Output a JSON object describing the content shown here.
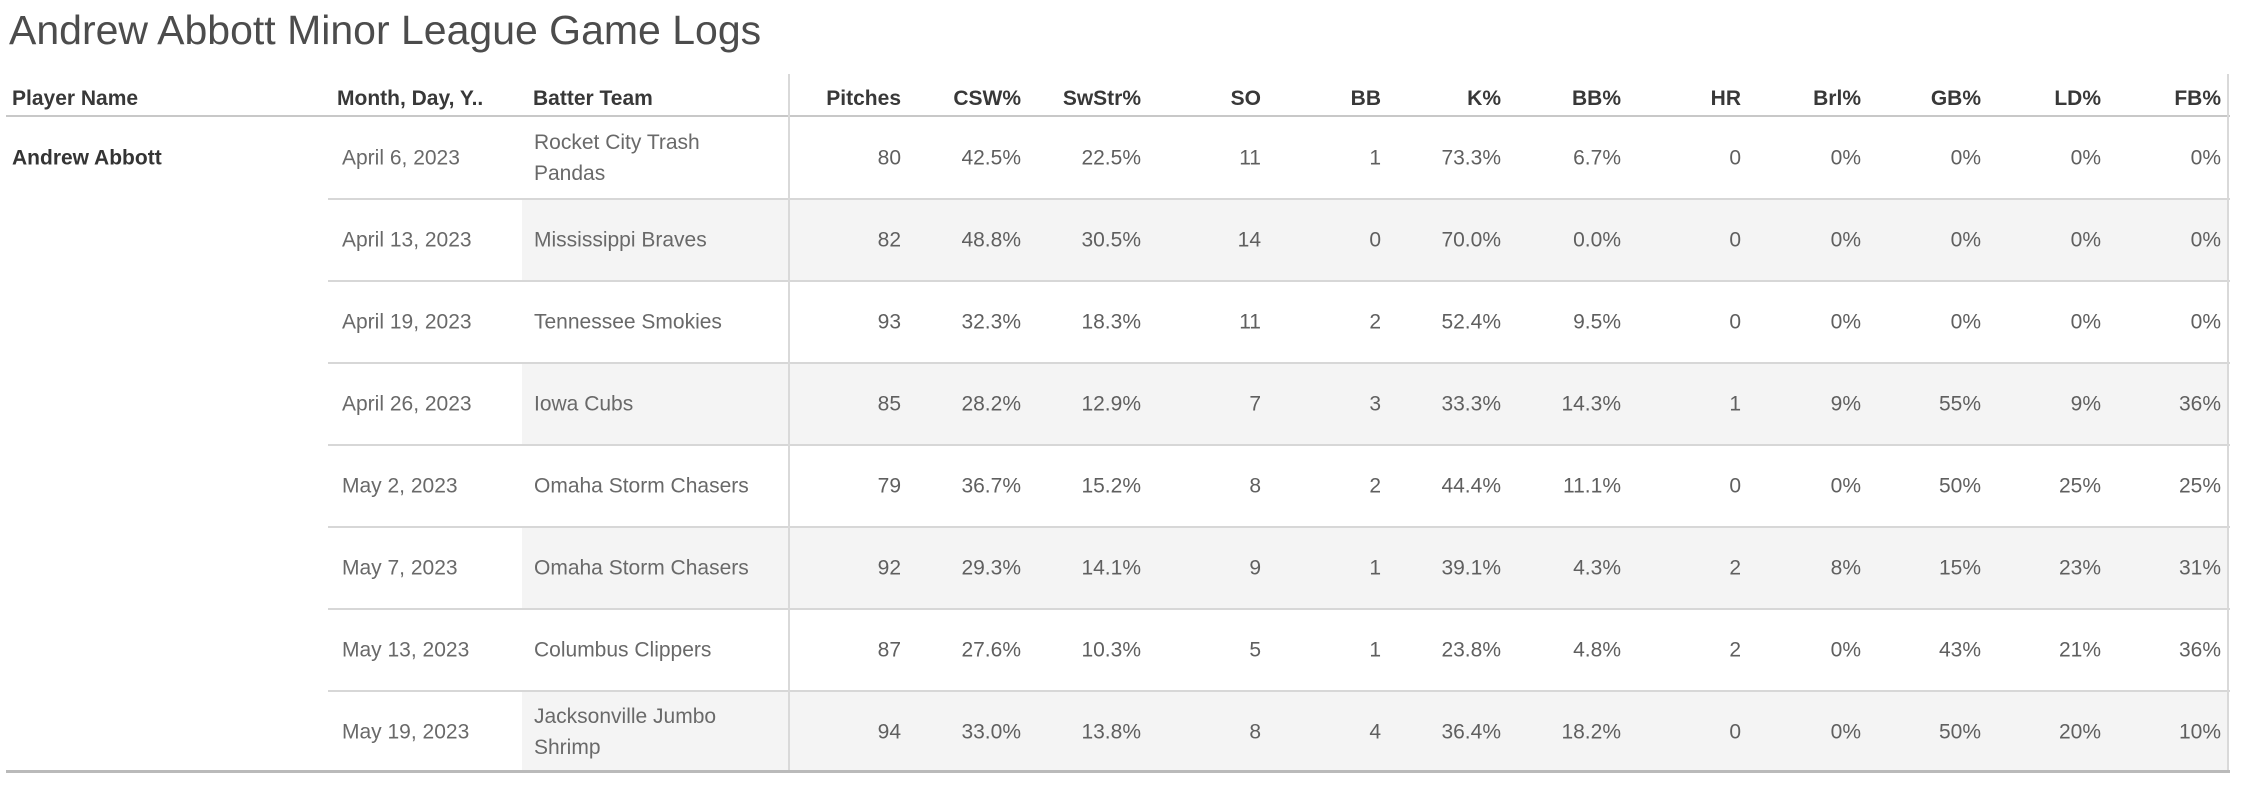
{
  "chart_data": {
    "type": "table",
    "title": "Andrew Abbott Minor League Game Logs",
    "columns": [
      "Player Name",
      "Month, Day, Y..",
      "Batter Team",
      "Pitches",
      "CSW%",
      "SwStr%",
      "SO",
      "BB",
      "K%",
      "BB%",
      "HR",
      "Brl%",
      "GB%",
      "LD%",
      "FB%"
    ],
    "player": "Andrew Abbott",
    "rows": [
      {
        "date": "April 6, 2023",
        "team": "Rocket City Trash Pandas",
        "values": [
          "80",
          "42.5%",
          "22.5%",
          "11",
          "1",
          "73.3%",
          "6.7%",
          "0",
          "0%",
          "0%",
          "0%",
          "0%"
        ]
      },
      {
        "date": "April 13, 2023",
        "team": "Mississippi Braves",
        "values": [
          "82",
          "48.8%",
          "30.5%",
          "14",
          "0",
          "70.0%",
          "0.0%",
          "0",
          "0%",
          "0%",
          "0%",
          "0%"
        ]
      },
      {
        "date": "April 19, 2023",
        "team": "Tennessee Smokies",
        "values": [
          "93",
          "32.3%",
          "18.3%",
          "11",
          "2",
          "52.4%",
          "9.5%",
          "0",
          "0%",
          "0%",
          "0%",
          "0%"
        ]
      },
      {
        "date": "April 26, 2023",
        "team": "Iowa Cubs",
        "values": [
          "85",
          "28.2%",
          "12.9%",
          "7",
          "3",
          "33.3%",
          "14.3%",
          "1",
          "9%",
          "55%",
          "9%",
          "36%"
        ]
      },
      {
        "date": "May 2, 2023",
        "team": "Omaha Storm Chasers",
        "values": [
          "79",
          "36.7%",
          "15.2%",
          "8",
          "2",
          "44.4%",
          "11.1%",
          "0",
          "0%",
          "50%",
          "25%",
          "25%"
        ]
      },
      {
        "date": "May 7, 2023",
        "team": "Omaha Storm Chasers",
        "values": [
          "92",
          "29.3%",
          "14.1%",
          "9",
          "1",
          "39.1%",
          "4.3%",
          "2",
          "8%",
          "15%",
          "23%",
          "31%"
        ]
      },
      {
        "date": "May 13, 2023",
        "team": "Columbus Clippers",
        "values": [
          "87",
          "27.6%",
          "10.3%",
          "5",
          "1",
          "23.8%",
          "4.8%",
          "2",
          "0%",
          "43%",
          "21%",
          "36%"
        ]
      },
      {
        "date": "May 19, 2023",
        "team": "Jacksonville Jumbo Shrimp",
        "values": [
          "94",
          "33.0%",
          "13.8%",
          "8",
          "4",
          "36.4%",
          "18.2%",
          "0",
          "0%",
          "50%",
          "20%",
          "10%"
        ]
      }
    ]
  },
  "colors": {
    "background": "#ffffff",
    "row_stripe": "#f4f4f4",
    "row_separator": "#d7d7d7",
    "header_underline": "#c8c8c8",
    "pane_divider": "#d9d9d9",
    "bottom_rule": "#bababa",
    "title_text": "#4c4c4c",
    "header_text": "#383838",
    "cell_text": "#5f5f5f"
  }
}
